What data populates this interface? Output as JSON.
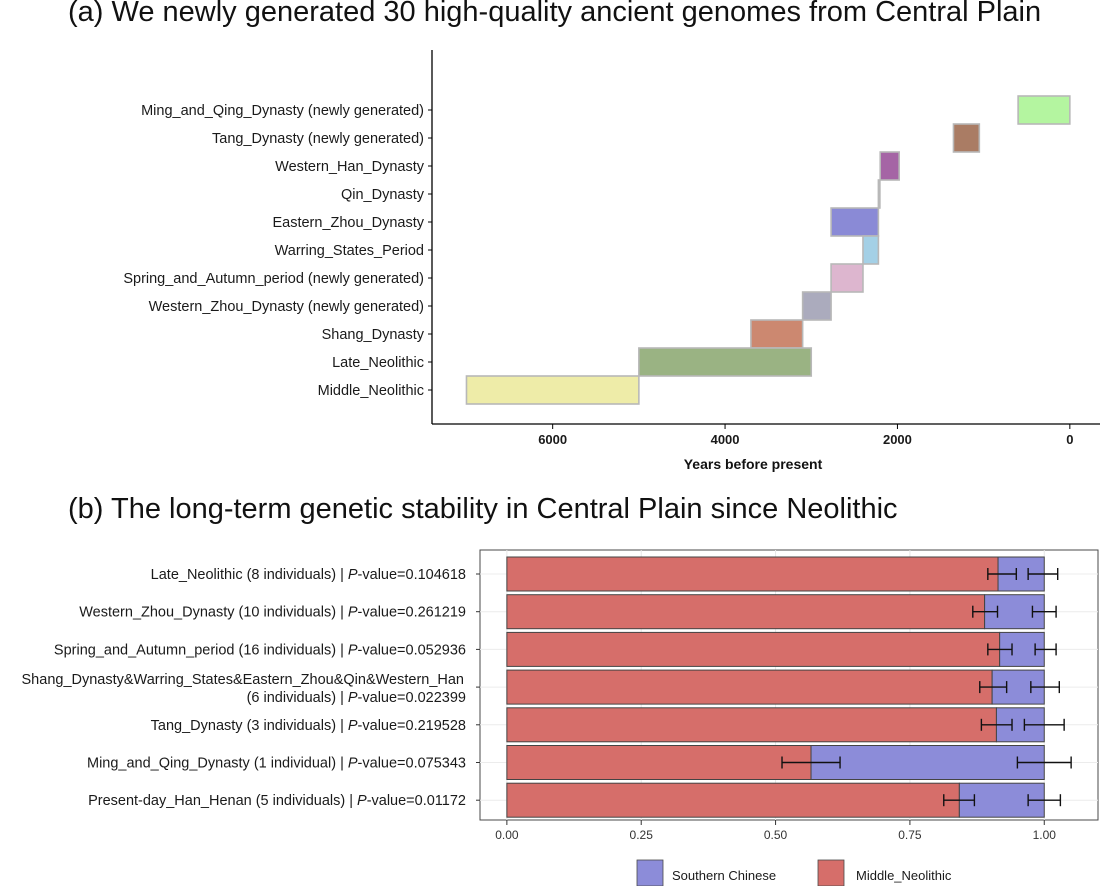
{
  "chart_data": [
    {
      "id": "a",
      "type": "bar",
      "subtype": "floating-range (timeline)",
      "title": "(a) We newly generated 30 high-quality ancient genomes from Central Plain",
      "xlabel": "Years before present",
      "ylabel": "",
      "x_reversed": true,
      "xlim": [
        7400,
        -350
      ],
      "xticks": [
        6000,
        4000,
        2000,
        0
      ],
      "xtick_labels": [
        "6000",
        "4000",
        "2000",
        "0"
      ],
      "grid": false,
      "series": [
        {
          "label": "Ming_and_Qing_Dynasty (newly generated)",
          "start": 600,
          "end": 0,
          "color": "#b4f5a0"
        },
        {
          "label": "Tang_Dynasty (newly generated)",
          "start": 1350,
          "end": 1050,
          "color": "#aa7c64"
        },
        {
          "label": "Western_Han_Dynasty",
          "start": 2200,
          "end": 1980,
          "color": "#a565a5"
        },
        {
          "label": "Qin_Dynasty",
          "start": 2221,
          "end": 2206,
          "color": "#9b9bcf"
        },
        {
          "label": "Eastern_Zhou_Dynasty",
          "start": 2770,
          "end": 2221,
          "color": "#8a8ad6"
        },
        {
          "label": "Warring_States_Period",
          "start": 2400,
          "end": 2221,
          "color": "#a4d0e6"
        },
        {
          "label": "Spring_and_Autumn_period (newly generated)",
          "start": 2770,
          "end": 2400,
          "color": "#ddb6cf"
        },
        {
          "label": "Western_Zhou_Dynasty (newly generated)",
          "start": 3100,
          "end": 2770,
          "color": "#ababbd"
        },
        {
          "label": "Shang_Dynasty",
          "start": 3700,
          "end": 3100,
          "color": "#cc8870"
        },
        {
          "label": "Late_Neolithic",
          "start": 5000,
          "end": 3000,
          "color": "#9ab383"
        },
        {
          "label": "Middle_Neolithic",
          "start": 7000,
          "end": 5000,
          "color": "#eeeca8"
        }
      ]
    },
    {
      "id": "b",
      "type": "bar",
      "subtype": "stacked horizontal proportion with error bars",
      "title": "(b) The long-term genetic stability in Central Plain since Neolithic",
      "xlabel": "",
      "ylabel": "",
      "xlim": [
        -0.05,
        1.1
      ],
      "xticks": [
        0.0,
        0.25,
        0.5,
        0.75,
        1.0
      ],
      "xtick_labels": [
        "0.00",
        "0.25",
        "0.50",
        "0.75",
        "1.00"
      ],
      "grid": true,
      "legend": [
        {
          "name": "Southern Chinese",
          "color": "#8c8cd9"
        },
        {
          "name": "Middle_Neolithic",
          "color": "#d66e6a"
        }
      ],
      "legend_position": "bottom",
      "rows": [
        {
          "label_lines": [
            "Late_Neolithic (8 individuals) | ",
            "P",
            "-value=0.104618"
          ],
          "middle_neolithic": 0.914,
          "southern_chinese": 0.086,
          "error_a": [
            0.895,
            0.948
          ],
          "error_b": [
            0.97,
            1.025
          ]
        },
        {
          "label_lines": [
            "Western_Zhou_Dynasty (10 individuals) | ",
            "P",
            "-value=0.261219"
          ],
          "middle_neolithic": 0.889,
          "southern_chinese": 0.111,
          "error_a": [
            0.867,
            0.913
          ],
          "error_b": [
            0.978,
            1.022
          ]
        },
        {
          "label_lines": [
            "Spring_and_Autumn_period (16 individuals) | ",
            "P",
            "-value=0.052936"
          ],
          "middle_neolithic": 0.917,
          "southern_chinese": 0.083,
          "error_a": [
            0.895,
            0.94
          ],
          "error_b": [
            0.983,
            1.022
          ]
        },
        {
          "label_lines": [
            "(6 individuals) | ",
            "P",
            "-value=0.022399"
          ],
          "label_line1": "Shang_Dynasty&Warring_States&Eastern_Zhou&Qin&Western_Han",
          "middle_neolithic": 0.903,
          "southern_chinese": 0.097,
          "error_a": [
            0.88,
            0.93
          ],
          "error_b": [
            0.975,
            1.028
          ]
        },
        {
          "label_lines": [
            "Tang_Dynasty (3 individuals) | ",
            "P",
            "-value=0.219528"
          ],
          "middle_neolithic": 0.911,
          "southern_chinese": 0.089,
          "error_a": [
            0.883,
            0.94
          ],
          "error_b": [
            0.963,
            1.037
          ]
        },
        {
          "label_lines": [
            "Ming_and_Qing_Dynasty (1 individual) | ",
            "P",
            "-value=0.075343"
          ],
          "middle_neolithic": 0.566,
          "southern_chinese": 0.434,
          "error_a": [
            0.512,
            0.62
          ],
          "error_b": [
            0.95,
            1.05
          ]
        },
        {
          "label_lines": [
            "Present-day_Han_Henan (5 individuals) | ",
            "P",
            "-value=0.01172"
          ],
          "middle_neolithic": 0.842,
          "southern_chinese": 0.158,
          "error_a": [
            0.813,
            0.87
          ],
          "error_b": [
            0.97,
            1.03
          ]
        }
      ]
    }
  ]
}
